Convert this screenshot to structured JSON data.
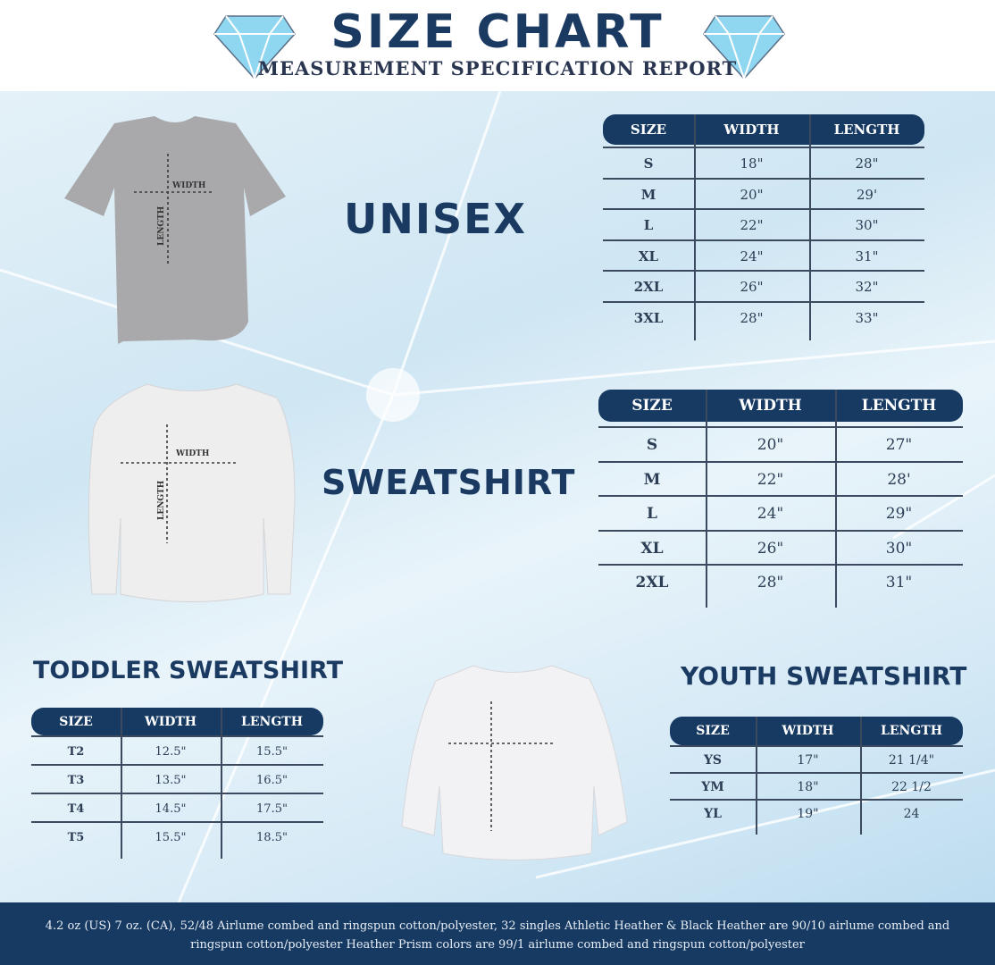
{
  "header": {
    "title": "SIZE CHART",
    "subtitle": "MEASUREMENT SPECIFICATION REPORT"
  },
  "colors": {
    "navy": "#173a63",
    "diamond": "#7fd0ee",
    "background": "#d6eaf5"
  },
  "garment_labels": {
    "width": "WIDTH",
    "length": "LENGTH"
  },
  "unisex": {
    "title": "UNISEX",
    "columns": [
      "SIZE",
      "WIDTH",
      "LENGTH"
    ],
    "rows": [
      [
        "S",
        "18\"",
        "28\""
      ],
      [
        "M",
        "20\"",
        "29'"
      ],
      [
        "L",
        "22\"",
        "30\""
      ],
      [
        "XL",
        "24\"",
        "31\""
      ],
      [
        "2XL",
        "26\"",
        "32\""
      ],
      [
        "3XL",
        "28\"",
        "33\""
      ]
    ]
  },
  "sweatshirt": {
    "title": "SWEATSHIRT",
    "columns": [
      "SIZE",
      "WIDTH",
      "LENGTH"
    ],
    "rows": [
      [
        "S",
        "20\"",
        "27\""
      ],
      [
        "M",
        "22\"",
        "28'"
      ],
      [
        "L",
        "24\"",
        "29\""
      ],
      [
        "XL",
        "26\"",
        "30\""
      ],
      [
        "2XL",
        "28\"",
        "31\""
      ]
    ]
  },
  "toddler": {
    "title": "TODDLER SWEATSHIRT",
    "columns": [
      "SIZE",
      "WIDTH",
      "LENGTH"
    ],
    "rows": [
      [
        "T2",
        "12.5\"",
        "15.5\""
      ],
      [
        "T3",
        "13.5\"",
        "16.5\""
      ],
      [
        "T4",
        "14.5\"",
        "17.5\""
      ],
      [
        "T5",
        "15.5\"",
        "18.5\""
      ]
    ]
  },
  "youth": {
    "title": "YOUTH SWEATSHIRT",
    "columns": [
      "SIZE",
      "WIDTH",
      "LENGTH"
    ],
    "rows": [
      [
        "YS",
        "17\"",
        "21 1/4\""
      ],
      [
        "YM",
        "18\"",
        "22 1/2"
      ],
      [
        "YL",
        "19\"",
        "24"
      ]
    ]
  },
  "footer": {
    "text": "4.2 oz (US) 7 oz. (CA), 52/48 Airlume combed and ringspun cotton/polyester, 32 singles Athletic Heather & Black Heather are 90/10 airlume combed and ringspun cotton/polyester Heather Prism colors are 99/1 airlume combed and ringspun cotton/polyester"
  }
}
